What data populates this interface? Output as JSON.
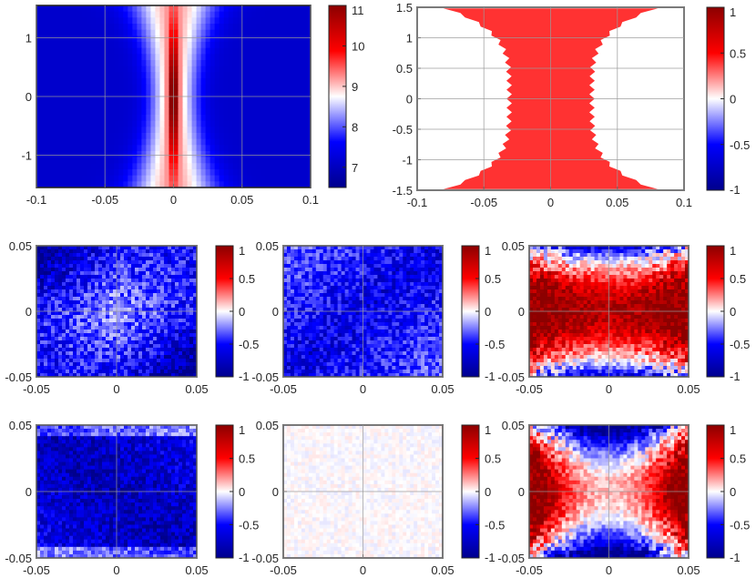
{
  "colors": {
    "low": "#0000b4",
    "mid": "#ffffff",
    "high": "#b40000",
    "cbar_stops": [
      "#00008c",
      "#0000ff",
      "#ffffff",
      "#ff0000",
      "#8c0000"
    ]
  },
  "chart_data": [
    {
      "id": "p1",
      "type": "heatmap",
      "pattern": "beam",
      "xlim": [
        -0.1,
        0.1
      ],
      "ylim": [
        -1.55,
        1.55
      ],
      "xticks": [
        -0.1,
        -0.05,
        0,
        0.05,
        0.1
      ],
      "xtick_labels": [
        "-0.1",
        "-0.05",
        "0",
        "0.05",
        "0.1"
      ],
      "yticks": [
        1,
        0,
        -1
      ],
      "ytick_labels": [
        "1",
        "0",
        "-1"
      ],
      "clim": [
        6.5,
        11
      ],
      "cbar_ticks": [
        11,
        10,
        9,
        8,
        7
      ],
      "cbar_labels": [
        "11",
        "10",
        "9",
        "8",
        "7"
      ]
    },
    {
      "id": "p2",
      "type": "heatmap",
      "pattern": "mask",
      "xlim": [
        -0.1,
        0.1
      ],
      "ylim": [
        -1.5,
        1.5
      ],
      "xticks": [
        -0.1,
        -0.05,
        0,
        0.05,
        0.1
      ],
      "xtick_labels": [
        "-0.1",
        "-0.05",
        "0",
        "0.05",
        "0.1"
      ],
      "yticks": [
        1.5,
        1,
        0.5,
        0,
        -0.5,
        -1,
        -1.5
      ],
      "ytick_labels": [
        "1.5",
        "1",
        "0.5",
        "0",
        "-0.5",
        "-1",
        "-1.5"
      ],
      "clim": [
        -1,
        1
      ],
      "cbar_ticks": [
        1,
        0.5,
        0,
        -0.5,
        -1
      ],
      "cbar_labels": [
        "1",
        "0.5",
        "0",
        "-0.5",
        "-1"
      ]
    },
    {
      "id": "p3",
      "type": "heatmap",
      "pattern": "blue",
      "xlim": [
        -0.05,
        0.05
      ],
      "ylim": [
        -0.05,
        0.05
      ],
      "xticks": [
        -0.05,
        0,
        0.05
      ],
      "xtick_labels": [
        "-0.05",
        "0",
        "0.05"
      ],
      "yticks": [
        0.05,
        0,
        -0.05
      ],
      "ytick_labels": [
        "0.05",
        "0",
        "-0.05"
      ],
      "clim": [
        -1,
        1
      ],
      "cbar_ticks": [
        1,
        0.5,
        0,
        -0.5,
        -1
      ],
      "cbar_labels": [
        "1",
        "0.5",
        "0",
        "-0.5",
        "-1"
      ]
    },
    {
      "id": "p4",
      "type": "heatmap",
      "pattern": "blue2",
      "xlim": [
        -0.05,
        0.05
      ],
      "ylim": [
        -0.05,
        0.05
      ],
      "xticks": [
        -0.05,
        0,
        0.05
      ],
      "xtick_labels": [
        "-0.05",
        "0",
        "0.05"
      ],
      "yticks": [
        0.05,
        0,
        -0.05
      ],
      "ytick_labels": [
        "0.05",
        "0",
        "-0.05"
      ],
      "clim": [
        -1,
        1
      ],
      "cbar_ticks": [
        1,
        0.5,
        0,
        -0.5,
        -1
      ],
      "cbar_labels": [
        "1",
        "0.5",
        "0",
        "-0.5",
        "-1"
      ]
    },
    {
      "id": "p5",
      "type": "heatmap",
      "pattern": "saddle",
      "xlim": [
        -0.05,
        0.05
      ],
      "ylim": [
        -0.05,
        0.05
      ],
      "xticks": [
        -0.05,
        0,
        0.05
      ],
      "xtick_labels": [
        "-0.05",
        "0",
        "0.05"
      ],
      "yticks": [
        0.05,
        0,
        -0.05
      ],
      "ytick_labels": [
        "0.05",
        "0",
        "-0.05"
      ],
      "clim": [
        -1,
        1
      ],
      "cbar_ticks": [
        1,
        0.5,
        0,
        -0.5,
        -1
      ],
      "cbar_labels": [
        "1",
        "0.5",
        "0",
        "-0.5",
        "-1"
      ]
    },
    {
      "id": "p6",
      "type": "heatmap",
      "pattern": "blue3",
      "xlim": [
        -0.05,
        0.05
      ],
      "ylim": [
        -0.05,
        0.05
      ],
      "xticks": [
        -0.05,
        0,
        0.05
      ],
      "xtick_labels": [
        "-0.05",
        "0",
        "0.05"
      ],
      "yticks": [
        0.05,
        0,
        -0.05
      ],
      "ytick_labels": [
        "0.05",
        "0",
        "-0.05"
      ],
      "clim": [
        -1,
        1
      ],
      "cbar_ticks": [
        1,
        0.5,
        0,
        -0.5,
        -1
      ],
      "cbar_labels": [
        "1",
        "0.5",
        "0",
        "-0.5",
        "-1"
      ]
    },
    {
      "id": "p7",
      "type": "heatmap",
      "pattern": "near_zero",
      "xlim": [
        -0.05,
        0.05
      ],
      "ylim": [
        -0.05,
        0.05
      ],
      "xticks": [
        -0.05,
        0,
        0.05
      ],
      "xtick_labels": [
        "-0.05",
        "0",
        "0.05"
      ],
      "yticks": [
        0.05,
        0,
        -0.05
      ],
      "ytick_labels": [
        "0.05",
        "0",
        "-0.05"
      ],
      "clim": [
        -1,
        1
      ],
      "cbar_ticks": [
        1,
        0.5,
        0,
        -0.5,
        -1
      ],
      "cbar_labels": [
        "1",
        "0.5",
        "0",
        "-0.5",
        "-1"
      ]
    },
    {
      "id": "p8",
      "type": "heatmap",
      "pattern": "cross",
      "xlim": [
        -0.05,
        0.05
      ],
      "ylim": [
        -0.05,
        0.05
      ],
      "xticks": [
        -0.05,
        0,
        0.05
      ],
      "xtick_labels": [
        "-0.05",
        "0",
        "0.05"
      ],
      "yticks": [
        0.05,
        0,
        -0.05
      ],
      "ytick_labels": [
        "0.05",
        "0",
        "-0.05"
      ],
      "clim": [
        -1,
        1
      ],
      "cbar_ticks": [
        1,
        0.5,
        0,
        -0.5,
        -1
      ],
      "cbar_labels": [
        "1",
        "0.5",
        "0",
        "-0.5",
        "-1"
      ]
    }
  ]
}
